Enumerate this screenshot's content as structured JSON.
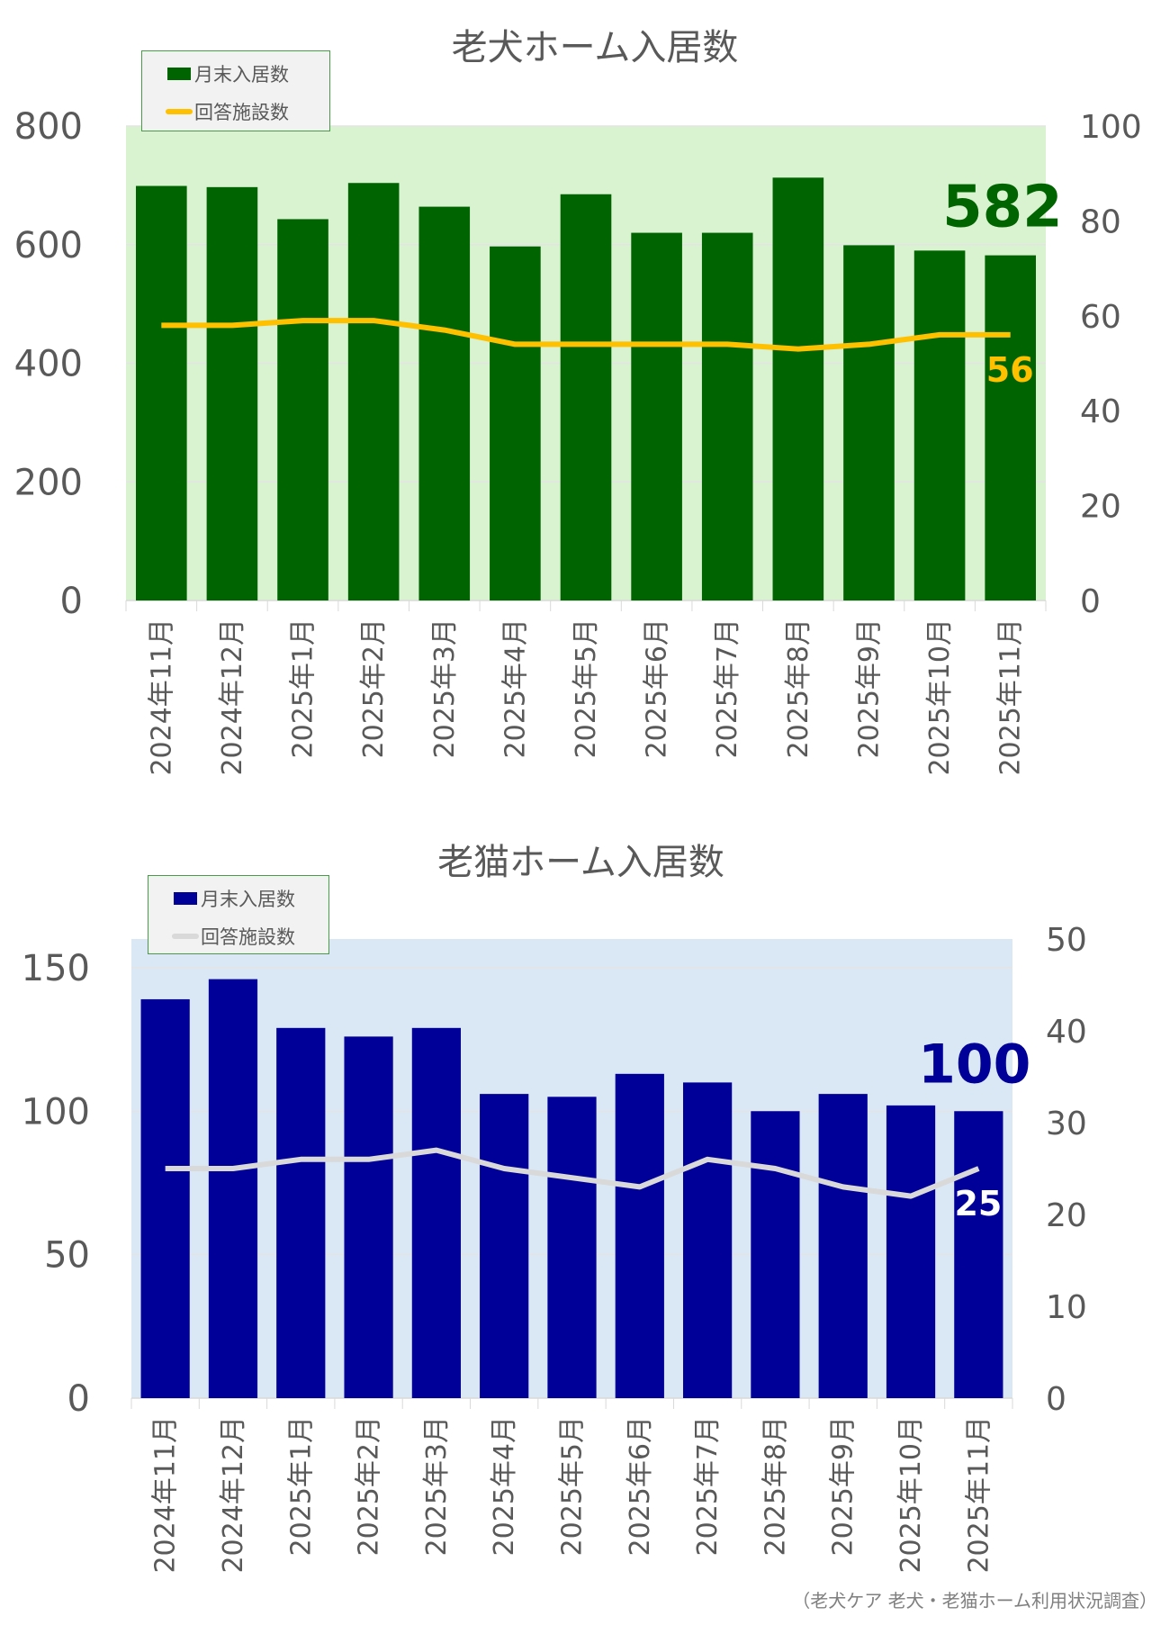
{
  "chart_data": [
    {
      "type": "bar+line",
      "title": "老犬ホーム入居数",
      "categories": [
        "2024年11月",
        "2024年12月",
        "2025年1月",
        "2025年2月",
        "2025年3月",
        "2025年4月",
        "2025年5月",
        "2025年6月",
        "2025年7月",
        "2025年8月",
        "2025年9月",
        "2025年10月",
        "2025年11月"
      ],
      "series": [
        {
          "name": "月末入居数",
          "type": "bar",
          "axis": "left",
          "color": "#006400",
          "values": [
            699,
            697,
            643,
            704,
            664,
            597,
            685,
            620,
            620,
            713,
            599,
            590,
            582
          ]
        },
        {
          "name": "回答施設数",
          "type": "line",
          "axis": "right",
          "color": "#ffc000",
          "values": [
            58,
            58,
            59,
            59,
            57,
            54,
            54,
            54,
            54,
            53,
            54,
            56,
            56
          ]
        }
      ],
      "y_left": {
        "ylim": [
          0,
          800
        ],
        "ticks": [
          0,
          200,
          400,
          600,
          800
        ]
      },
      "y_right": {
        "ylim": [
          0,
          100
        ],
        "ticks": [
          0,
          20,
          40,
          60,
          80,
          100
        ]
      },
      "annotations": {
        "bar_last": "582",
        "line_last": "56"
      },
      "plot_background": "#d9f2d0",
      "legend": "top-left",
      "grid": true
    },
    {
      "type": "bar+line",
      "title": "老猫ホーム入居数",
      "categories": [
        "2024年11月",
        "2024年12月",
        "2025年1月",
        "2025年2月",
        "2025年3月",
        "2025年4月",
        "2025年5月",
        "2025年6月",
        "2025年7月",
        "2025年8月",
        "2025年9月",
        "2025年10月",
        "2025年11月"
      ],
      "series": [
        {
          "name": "月末入居数",
          "type": "bar",
          "axis": "left",
          "color": "#000099",
          "values": [
            139,
            146,
            129,
            126,
            129,
            106,
            105,
            113,
            110,
            100,
            106,
            102,
            100
          ]
        },
        {
          "name": "回答施設数",
          "type": "line",
          "axis": "right",
          "color": "#d9d9d9",
          "values": [
            25,
            25,
            26,
            26,
            27,
            25,
            24,
            23,
            26,
            25,
            23,
            22,
            25
          ]
        }
      ],
      "y_left": {
        "ylim": [
          0,
          160
        ],
        "ticks": [
          0,
          50,
          100,
          150
        ]
      },
      "y_right": {
        "ylim": [
          0,
          50
        ],
        "ticks": [
          0,
          10,
          20,
          30,
          40,
          50
        ]
      },
      "annotations": {
        "bar_last": "100",
        "line_last": "25"
      },
      "plot_background": "#dae8f6",
      "legend": "top-left",
      "grid": true
    }
  ],
  "footer": "（老犬ケア 老犬・老猫ホーム利用状況調査）"
}
